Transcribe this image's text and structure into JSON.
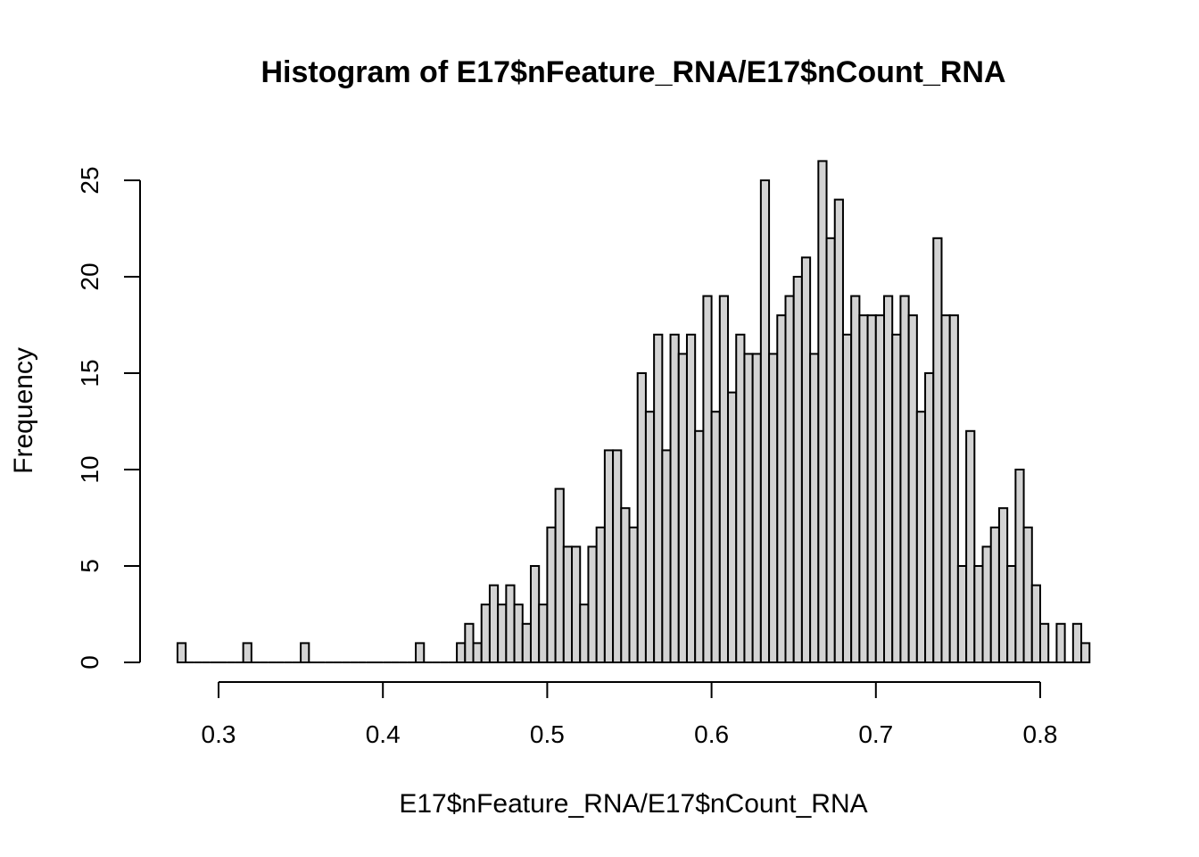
{
  "chart_data": {
    "type": "bar",
    "title": "Histogram of E17$nFeature_RNA/E17$nCount_RNA",
    "xlabel": "E17$nFeature_RNA/E17$nCount_RNA",
    "ylabel": "Frequency",
    "x_ticks": [
      0.3,
      0.4,
      0.5,
      0.6,
      0.7,
      0.8
    ],
    "y_ticks": [
      0,
      5,
      10,
      15,
      20,
      25
    ],
    "bin_width": 0.005,
    "first_bin_start": 0.275,
    "values": [
      1,
      0,
      0,
      0,
      0,
      0,
      0,
      0,
      1,
      0,
      0,
      0,
      0,
      0,
      0,
      1,
      0,
      0,
      0,
      0,
      0,
      0,
      0,
      0,
      0,
      0,
      0,
      0,
      0,
      1,
      0,
      0,
      0,
      0,
      1,
      2,
      1,
      3,
      4,
      3,
      4,
      3,
      2,
      5,
      3,
      7,
      9,
      6,
      6,
      3,
      6,
      7,
      11,
      11,
      8,
      7,
      15,
      13,
      17,
      11,
      17,
      16,
      17,
      12,
      19,
      13,
      19,
      14,
      17,
      16,
      16,
      25,
      16,
      18,
      19,
      20,
      21,
      16,
      26,
      22,
      24,
      17,
      19,
      18,
      18,
      18,
      19,
      17,
      19,
      18,
      13,
      15,
      22,
      18,
      18,
      5,
      12,
      5,
      6,
      7,
      8,
      5,
      10,
      7,
      4,
      2,
      0,
      2,
      0,
      2,
      1
    ],
    "xlim": [
      0.275,
      0.83
    ],
    "ylim": [
      0,
      26
    ]
  }
}
